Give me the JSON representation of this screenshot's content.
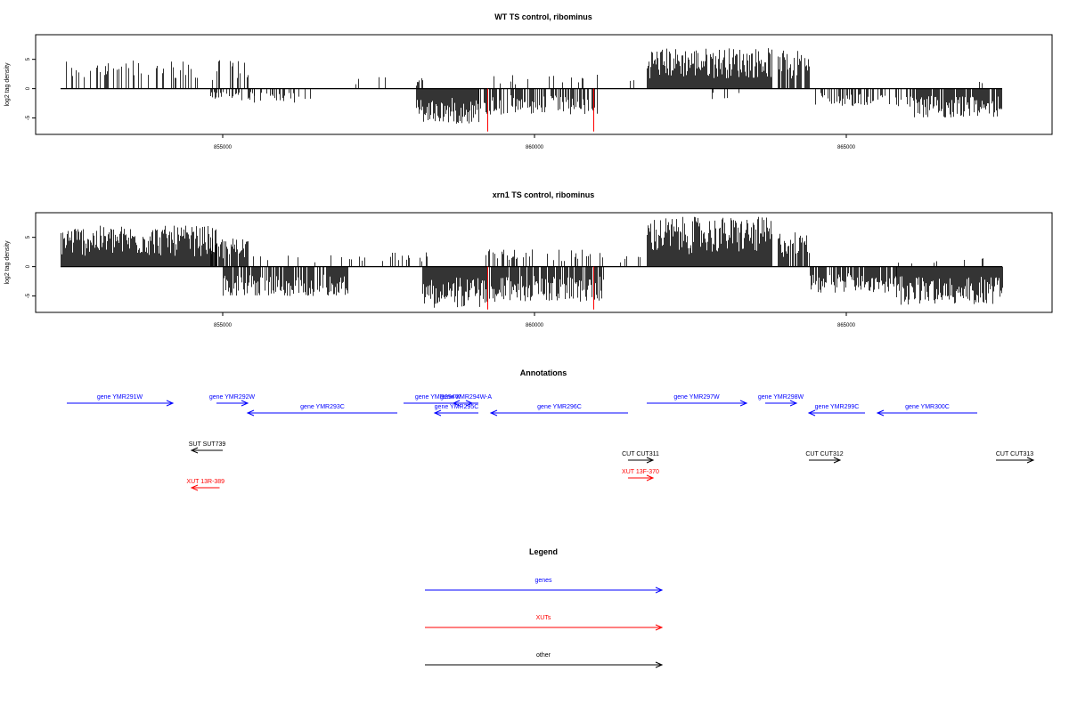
{
  "chart_data": [
    {
      "type": "bar",
      "title": "WT TS control, ribominus",
      "ylabel": "log2 tag density",
      "xlabel": "",
      "x_ticks": [
        855000,
        860000,
        865000
      ],
      "x_tick_labels": [
        "855000",
        "860000",
        "865000"
      ],
      "y_ticks": [
        -5,
        0,
        5
      ],
      "y_tick_labels": [
        "-5",
        "0",
        "5"
      ],
      "xlim": [
        852000,
        868300
      ],
      "ylim": [
        -7.8,
        9.2
      ],
      "track_range": [
        852400,
        867500
      ],
      "highlight_positions": [
        859250,
        860950
      ],
      "highlight_color": "#ff0000",
      "series": [
        {
          "segments": [
            {
              "x": [
                852400,
                855400
              ],
              "y": [
                0,
                5.0
              ],
              "density": 0.3
            },
            {
              "x": [
                854800,
                855500
              ],
              "y": [
                -2.0,
                0
              ],
              "density": 0.6
            },
            {
              "x": [
                855500,
                856600
              ],
              "y": [
                -2.5,
                0
              ],
              "density": 0.25
            },
            {
              "x": [
                857000,
                857600
              ],
              "y": [
                0,
                2.0
              ],
              "density": 0.08
            },
            {
              "x": [
                858100,
                858200
              ],
              "y": [
                0,
                2.0
              ],
              "density": 0.5
            },
            {
              "x": [
                858100,
                859100
              ],
              "y": [
                -6.0,
                0
              ],
              "density": 1.0
            },
            {
              "x": [
                859100,
                861000
              ],
              "y": [
                -4.5,
                0
              ],
              "density": 0.55
            },
            {
              "x": [
                859300,
                861100
              ],
              "y": [
                0,
                2.5
              ],
              "density": 0.08
            },
            {
              "x": [
                861500,
                861600
              ],
              "y": [
                0,
                2.0
              ],
              "density": 0.5
            },
            {
              "x": [
                861800,
                863800
              ],
              "y": [
                0,
                7.0
              ],
              "density": 1.0
            },
            {
              "x": [
                862000,
                863400
              ],
              "y": [
                -2.0,
                0
              ],
              "density": 0.08
            },
            {
              "x": [
                863900,
                864400
              ],
              "y": [
                0,
                6.5
              ],
              "density": 0.8
            },
            {
              "x": [
                864500,
                866000
              ],
              "y": [
                -3.0,
                0
              ],
              "density": 0.35
            },
            {
              "x": [
                866000,
                867500
              ],
              "y": [
                -5.0,
                0
              ],
              "density": 0.9
            },
            {
              "x": [
                867100,
                867200
              ],
              "y": [
                0,
                1.5
              ],
              "density": 0.3
            }
          ]
        },
        {
          "name": "highlight",
          "color": "#ff0000",
          "points": [
            [
              859250,
              -7.3
            ],
            [
              860950,
              -7.3
            ]
          ]
        }
      ]
    },
    {
      "type": "bar",
      "title": "xrn1 TS control, ribominus",
      "ylabel": "log2 tag density",
      "xlabel": "",
      "x_ticks": [
        855000,
        860000,
        865000
      ],
      "x_tick_labels": [
        "855000",
        "860000",
        "865000"
      ],
      "y_ticks": [
        -5,
        0,
        5
      ],
      "y_tick_labels": [
        "-5",
        "0",
        "5"
      ],
      "xlim": [
        852000,
        868300
      ],
      "ylim": [
        -7.8,
        9.2
      ],
      "track_range": [
        852400,
        867500
      ],
      "highlight_positions": [
        859250,
        860950
      ],
      "highlight_color": "#ff0000",
      "series": [
        {
          "segments": [
            {
              "x": [
                852400,
                854900
              ],
              "y": [
                0,
                7.0
              ],
              "density": 1.0
            },
            {
              "x": [
                854800,
                855400
              ],
              "y": [
                0,
                5.0
              ],
              "density": 0.9
            },
            {
              "x": [
                855000,
                857000
              ],
              "y": [
                -5.0,
                0
              ],
              "density": 0.8
            },
            {
              "x": [
                855300,
                857700
              ],
              "y": [
                0,
                2.0
              ],
              "density": 0.1
            },
            {
              "x": [
                857700,
                858300
              ],
              "y": [
                0,
                2.5
              ],
              "density": 0.25
            },
            {
              "x": [
                858200,
                859200
              ],
              "y": [
                -7.0,
                0
              ],
              "density": 1.0
            },
            {
              "x": [
                859200,
                861100
              ],
              "y": [
                -6.0,
                0
              ],
              "density": 0.85
            },
            {
              "x": [
                859200,
                861100
              ],
              "y": [
                0,
                3.0
              ],
              "density": 0.25
            },
            {
              "x": [
                861300,
                861700
              ],
              "y": [
                0,
                2.0
              ],
              "density": 0.2
            },
            {
              "x": [
                861800,
                863800
              ],
              "y": [
                0,
                8.5
              ],
              "density": 1.0
            },
            {
              "x": [
                863900,
                864400
              ],
              "y": [
                0,
                6.0
              ],
              "density": 0.9
            },
            {
              "x": [
                864400,
                865800
              ],
              "y": [
                -4.5,
                0
              ],
              "density": 0.8
            },
            {
              "x": [
                865800,
                867500
              ],
              "y": [
                -6.5,
                0
              ],
              "density": 1.0
            },
            {
              "x": [
                865800,
                867200
              ],
              "y": [
                0,
                1.5
              ],
              "density": 0.1
            }
          ]
        },
        {
          "name": "highlight",
          "color": "#ff0000",
          "points": [
            [
              859250,
              -7.3
            ],
            [
              860950,
              -7.3
            ]
          ]
        }
      ]
    }
  ],
  "annotations": {
    "title": "Annotations",
    "xlim": [
      852000,
      868300
    ],
    "features": [
      {
        "label": "gene YMR291W",
        "kind": "gene",
        "strand": "+",
        "start": 852500,
        "end": 854200,
        "row": 0
      },
      {
        "label": "gene YMR292W",
        "kind": "gene",
        "strand": "+",
        "start": 854900,
        "end": 855400,
        "row": 0
      },
      {
        "label": "gene YMR293C",
        "kind": "gene",
        "strand": "-",
        "start": 855400,
        "end": 857800,
        "row": 1
      },
      {
        "label": "gene YMR294W",
        "kind": "gene",
        "strand": "+",
        "start": 857900,
        "end": 859000,
        "row": 0
      },
      {
        "label": "gene YMR294W-A",
        "kind": "gene",
        "strand": "-",
        "start": 858700,
        "end": 859100,
        "row": 0
      },
      {
        "label": "gene YMR295C",
        "kind": "gene",
        "strand": "-",
        "start": 858400,
        "end": 859100,
        "row": 1
      },
      {
        "label": "gene YMR296C",
        "kind": "gene",
        "strand": "-",
        "start": 859300,
        "end": 861500,
        "row": 1
      },
      {
        "label": "gene YMR297W",
        "kind": "gene",
        "strand": "+",
        "start": 861800,
        "end": 863400,
        "row": 0
      },
      {
        "label": "gene YMR298W",
        "kind": "gene",
        "strand": "+",
        "start": 863700,
        "end": 864200,
        "row": 0
      },
      {
        "label": "gene YMR299C",
        "kind": "gene",
        "strand": "-",
        "start": 864400,
        "end": 865300,
        "row": 1
      },
      {
        "label": "gene YMR300C",
        "kind": "gene",
        "strand": "-",
        "start": 865500,
        "end": 867100,
        "row": 1
      },
      {
        "label": "SUT SUT739",
        "kind": "other",
        "strand": "-",
        "start": 854500,
        "end": 855000,
        "row": 2
      },
      {
        "label": "CUT CUT311",
        "kind": "other",
        "strand": "+",
        "start": 861500,
        "end": 861900,
        "row": 3
      },
      {
        "label": "CUT CUT312",
        "kind": "other",
        "strand": "+",
        "start": 864400,
        "end": 864900,
        "row": 3
      },
      {
        "label": "CUT CUT313",
        "kind": "other",
        "strand": "+",
        "start": 867400,
        "end": 868000,
        "row": 3
      },
      {
        "label": "XUT 13R-389",
        "kind": "xut",
        "strand": "-",
        "start": 854500,
        "end": 854950,
        "row": 4
      },
      {
        "label": "XUT 13F-370",
        "kind": "xut",
        "strand": "+",
        "start": 861500,
        "end": 861900,
        "row": 5
      }
    ]
  },
  "legend": {
    "title": "Legend",
    "items": [
      {
        "label": "genes",
        "color": "#0000ff"
      },
      {
        "label": "XUTs",
        "color": "#ff0000"
      },
      {
        "label": "other",
        "color": "#000000"
      }
    ]
  },
  "colors": {
    "gene": "#0000ff",
    "xut": "#ff0000",
    "other": "#000000",
    "bar": "#000000"
  }
}
